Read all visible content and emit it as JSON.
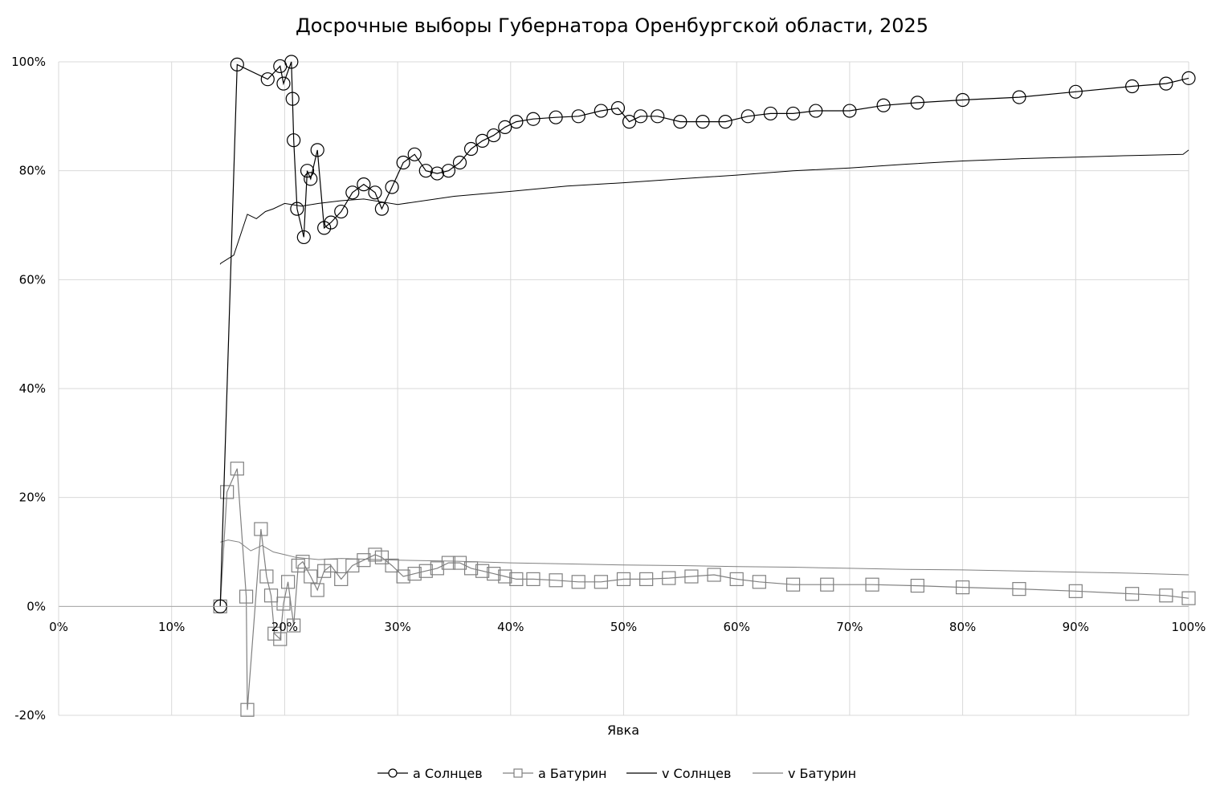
{
  "chart_data": {
    "type": "scatter",
    "title": "Досрочные выборы Губернатора Оренбургской области, 2025",
    "xlabel": "Явка",
    "ylabel": "",
    "xlim": [
      0,
      100
    ],
    "ylim": [
      -20,
      100
    ],
    "x_ticks": [
      "0%",
      "10%",
      "20%",
      "30%",
      "40%",
      "50%",
      "60%",
      "70%",
      "80%",
      "90%",
      "100%"
    ],
    "y_ticks": [
      "-20%",
      "0%",
      "20%",
      "40%",
      "60%",
      "80%",
      "100%"
    ],
    "grid": true,
    "legend_position": "bottom",
    "colors": {
      "solntsev": "#000000",
      "baturin": "#808080",
      "grid": "#d9d9d9"
    },
    "series": [
      {
        "name": "a Солнцев",
        "kind": "markers-line",
        "marker": "circle",
        "color": "#000000",
        "x": [
          14.3,
          15.8,
          18.5,
          19.6,
          19.9,
          20.6,
          20.7,
          20.8,
          21.1,
          21.7,
          22.0,
          22.3,
          22.9,
          23.5,
          24.1,
          25.0,
          26.0,
          27.0,
          28.0,
          28.6,
          29.5,
          30.5,
          31.5,
          32.5,
          33.5,
          34.5,
          35.5,
          36.5,
          37.5,
          38.5,
          39.5,
          40.5,
          42.0,
          44.0,
          46.0,
          48.0,
          49.5,
          50.5,
          51.5,
          53.0,
          55.0,
          57.0,
          59.0,
          61.0,
          63.0,
          65.0,
          67.0,
          70.0,
          73.0,
          76.0,
          80.0,
          85.0,
          90.0,
          95.0,
          98.0,
          100.0
        ],
        "y": [
          0,
          99.5,
          96.8,
          99.2,
          96.0,
          100.0,
          93.2,
          85.6,
          73.0,
          67.8,
          80.0,
          78.5,
          83.8,
          69.5,
          70.5,
          72.5,
          76.0,
          77.5,
          76.0,
          73.0,
          77.0,
          81.5,
          83.0,
          80.0,
          79.5,
          80.0,
          81.5,
          84.0,
          85.5,
          86.5,
          88.0,
          89.0,
          89.5,
          89.8,
          90.0,
          91.0,
          91.5,
          89.0,
          90.0,
          90.0,
          89.0,
          89.0,
          89.0,
          90.0,
          90.5,
          90.5,
          91.0,
          91.0,
          92.0,
          92.5,
          93.0,
          93.5,
          94.5,
          95.5,
          96.0,
          97.0
        ]
      },
      {
        "name": "a Батурин",
        "kind": "markers-line",
        "marker": "square",
        "color": "#808080",
        "x": [
          14.3,
          14.9,
          15.8,
          16.6,
          16.7,
          17.9,
          18.4,
          18.8,
          19.1,
          19.6,
          19.9,
          20.3,
          20.8,
          21.2,
          21.6,
          22.3,
          22.9,
          23.5,
          24.1,
          25.0,
          26.0,
          27.0,
          28.0,
          28.6,
          29.5,
          30.5,
          31.5,
          32.5,
          33.5,
          34.5,
          35.5,
          36.5,
          37.5,
          38.5,
          39.5,
          40.5,
          42.0,
          44.0,
          46.0,
          48.0,
          50.0,
          52.0,
          54.0,
          56.0,
          58.0,
          60.0,
          62.0,
          65.0,
          68.0,
          72.0,
          76.0,
          80.0,
          85.0,
          90.0,
          95.0,
          98.0,
          100.0
        ],
        "y": [
          0,
          21.0,
          25.3,
          1.8,
          -19.0,
          14.2,
          5.5,
          2.0,
          -5.0,
          -6.0,
          0.5,
          4.5,
          -3.5,
          7.5,
          8.2,
          5.5,
          3.0,
          6.5,
          7.5,
          5.0,
          7.5,
          8.5,
          9.5,
          9.0,
          7.5,
          5.5,
          6.0,
          6.5,
          7.0,
          8.0,
          8.0,
          7.0,
          6.5,
          6.0,
          5.5,
          5.0,
          5.0,
          4.8,
          4.5,
          4.5,
          5.0,
          5.0,
          5.2,
          5.5,
          5.8,
          5.0,
          4.5,
          4.0,
          4.0,
          4.0,
          3.8,
          3.5,
          3.2,
          2.8,
          2.3,
          2.0,
          1.5
        ]
      },
      {
        "name": "v Солнцев",
        "kind": "line",
        "color": "#000000",
        "x": [
          14.3,
          14.35,
          15.5,
          16.7,
          17.5,
          18.3,
          19.0,
          20.0,
          21.5,
          23.0,
          25.0,
          27.0,
          30.0,
          35.0,
          40.0,
          45.0,
          50.0,
          55.0,
          60.0,
          65.0,
          70.0,
          75.0,
          80.0,
          85.0,
          90.0,
          95.0,
          99.5,
          100.0
        ],
        "y": [
          62.8,
          63.0,
          64.5,
          72.0,
          71.2,
          72.5,
          73.0,
          74.0,
          73.5,
          74.0,
          74.5,
          74.8,
          73.8,
          75.3,
          76.2,
          77.2,
          77.8,
          78.5,
          79.2,
          80.0,
          80.5,
          81.2,
          81.8,
          82.2,
          82.5,
          82.8,
          83.0,
          83.8
        ]
      },
      {
        "name": "v Батурин",
        "kind": "line",
        "color": "#808080",
        "x": [
          14.3,
          15.0,
          16.0,
          17.0,
          18.0,
          19.0,
          20.0,
          21.0,
          23.0,
          25.0,
          30.0,
          35.0,
          40.0,
          45.0,
          50.0,
          55.0,
          60.0,
          65.0,
          70.0,
          75.0,
          80.0,
          85.0,
          90.0,
          95.0,
          100.0
        ],
        "y": [
          11.8,
          12.2,
          11.8,
          10.2,
          11.2,
          10.0,
          9.5,
          9.0,
          8.6,
          8.8,
          8.5,
          8.3,
          8.0,
          7.8,
          7.6,
          7.5,
          7.3,
          7.2,
          7.0,
          6.8,
          6.7,
          6.5,
          6.3,
          6.1,
          5.8
        ]
      }
    ]
  }
}
